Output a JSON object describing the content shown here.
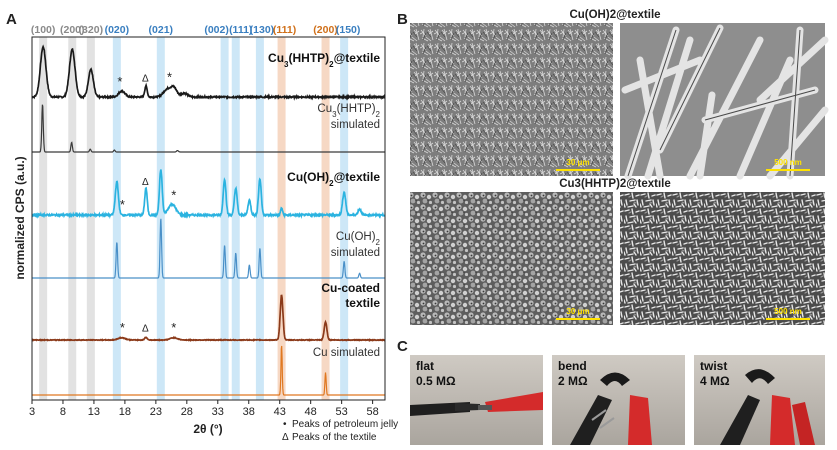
{
  "panels": {
    "a": "A",
    "b": "B",
    "c": "C"
  },
  "colors": {
    "black_trace": "#1a1a1a",
    "cuhhtp_sim": "#3a3a3a",
    "cuoh2": "#2bb3e0",
    "cuoh2_sim": "#4a90c8",
    "cu": "#8b3a1a",
    "cu_sim": "#e07820",
    "band_grey": "#e2e2e2",
    "band_blue": "#cde7f7",
    "band_orange": "#f6d8c4",
    "hkl_grey": "#8a8a8a",
    "hkl_blue": "#3a7fc0",
    "hkl_orange": "#d0701a"
  },
  "chart_data": {
    "type": "line",
    "xlabel": "2θ (°)",
    "ylabel": "normalized CPS (a.u.)",
    "xlim": [
      3,
      60
    ],
    "x_ticks": [
      3,
      8,
      13,
      18,
      23,
      28,
      33,
      38,
      43,
      48,
      53,
      58
    ],
    "reflections": [
      {
        "label": "(100)",
        "x": 4.8,
        "color": "grey"
      },
      {
        "label": "(200)",
        "x": 9.5,
        "color": "grey"
      },
      {
        "label": "(320)",
        "x": 12.5,
        "color": "grey"
      },
      {
        "label": "(020)",
        "x": 16.7,
        "color": "blue"
      },
      {
        "label": "(021)",
        "x": 23.8,
        "color": "blue"
      },
      {
        "label": "(002)",
        "x": 34.1,
        "color": "blue"
      },
      {
        "label": "(111)",
        "x": 35.9,
        "color": "blue"
      },
      {
        "label": "(130)",
        "x": 39.8,
        "color": "blue"
      },
      {
        "label": "(111)",
        "x": 43.3,
        "color": "orange"
      },
      {
        "label": "(200)",
        "x": 50.4,
        "color": "orange"
      },
      {
        "label": "(150)",
        "x": 53.4,
        "color": "blue"
      }
    ],
    "series": [
      {
        "name": "Cu3(HHTP)2@textile",
        "bold": true,
        "color_key": "black_trace",
        "noise": 0.03,
        "peaks": [
          [
            4.8,
            1.0,
            0.45
          ],
          [
            9.5,
            0.95,
            0.45
          ],
          [
            12.5,
            0.55,
            0.4
          ],
          [
            17.5,
            0.12,
            0.5
          ],
          [
            21.4,
            0.22,
            0.2
          ],
          [
            24.8,
            0.15,
            0.6
          ],
          [
            25.9,
            0.18,
            0.5
          ],
          [
            27.6,
            0.08,
            0.5
          ]
        ]
      },
      {
        "name": "Cu3(HHTP)2 simulated",
        "bold": false,
        "color_key": "cuhhtp_sim",
        "noise": 0.0,
        "peaks": [
          [
            4.7,
            1.0,
            0.12
          ],
          [
            9.4,
            0.2,
            0.12
          ],
          [
            12.4,
            0.06,
            0.12
          ],
          [
            16.3,
            0.04,
            0.12
          ],
          [
            26.5,
            0.03,
            0.15
          ]
        ]
      },
      {
        "name": "Cu(OH)2@textile",
        "bold": true,
        "color_key": "cuoh2",
        "noise": 0.03,
        "peaks": [
          [
            16.7,
            0.55,
            0.25
          ],
          [
            21.4,
            0.45,
            0.2
          ],
          [
            23.8,
            0.75,
            0.22
          ],
          [
            25.6,
            0.18,
            0.6
          ],
          [
            34.1,
            0.6,
            0.22
          ],
          [
            35.9,
            0.45,
            0.22
          ],
          [
            38.1,
            0.25,
            0.22
          ],
          [
            39.8,
            0.6,
            0.22
          ],
          [
            43.3,
            0.12,
            0.15
          ],
          [
            53.4,
            0.38,
            0.25
          ],
          [
            55.9,
            0.1,
            0.25
          ]
        ]
      },
      {
        "name": "Cu(OH)2 simulated",
        "bold": false,
        "color_key": "cuoh2_sim",
        "noise": 0.0,
        "peaks": [
          [
            16.7,
            0.6,
            0.12
          ],
          [
            23.8,
            1.0,
            0.12
          ],
          [
            34.1,
            0.55,
            0.12
          ],
          [
            35.9,
            0.42,
            0.12
          ],
          [
            38.1,
            0.22,
            0.12
          ],
          [
            39.8,
            0.5,
            0.12
          ],
          [
            53.4,
            0.28,
            0.12
          ],
          [
            55.9,
            0.08,
            0.12
          ]
        ]
      },
      {
        "name": "Cu-coated textile",
        "bold": true,
        "color_key": "cu",
        "noise": 0.015,
        "peaks": [
          [
            17.5,
            0.05,
            0.6
          ],
          [
            21.4,
            0.06,
            0.2
          ],
          [
            25.9,
            0.05,
            0.6
          ],
          [
            43.3,
            1.0,
            0.22
          ],
          [
            50.4,
            0.4,
            0.22
          ]
        ]
      },
      {
        "name": "Cu simulated",
        "bold": false,
        "color_key": "cu_sim",
        "noise": 0.0,
        "peaks": [
          [
            43.3,
            1.0,
            0.1
          ],
          [
            50.4,
            0.45,
            0.1
          ]
        ]
      }
    ],
    "annotations": [
      {
        "series": 0,
        "x": 17.2,
        "text": "*"
      },
      {
        "series": 0,
        "x": 21.3,
        "text": "Δ"
      },
      {
        "series": 0,
        "x": 25.2,
        "text": "*"
      },
      {
        "series": 2,
        "x": 17.6,
        "text": "*"
      },
      {
        "series": 2,
        "x": 21.3,
        "text": "Δ"
      },
      {
        "series": 2,
        "x": 25.9,
        "text": "*"
      },
      {
        "series": 4,
        "x": 17.6,
        "text": "*"
      },
      {
        "series": 4,
        "x": 21.3,
        "text": "Δ"
      },
      {
        "series": 4,
        "x": 25.9,
        "text": "*"
      }
    ],
    "legend": [
      {
        "symbol": "•",
        "text": "Peaks of petroleum jelly"
      },
      {
        "symbol": "Δ",
        "text": "Peaks of the textile"
      }
    ]
  },
  "sem": {
    "top_title": "Cu(OH)2@textile",
    "bottom_title": "Cu3(HHTP)2@textile",
    "images": [
      {
        "scale": "30 μm",
        "style": "needles-low"
      },
      {
        "scale": "500 nm",
        "style": "needles-high"
      },
      {
        "scale": "30 μm",
        "style": "grains-low"
      },
      {
        "scale": "500 nm",
        "style": "rods-high"
      }
    ]
  },
  "photos": [
    {
      "state": "flat",
      "resistance": "0.5 MΩ"
    },
    {
      "state": "bend",
      "resistance": "2 MΩ"
    },
    {
      "state": "twist",
      "resistance": "4 MΩ"
    }
  ]
}
